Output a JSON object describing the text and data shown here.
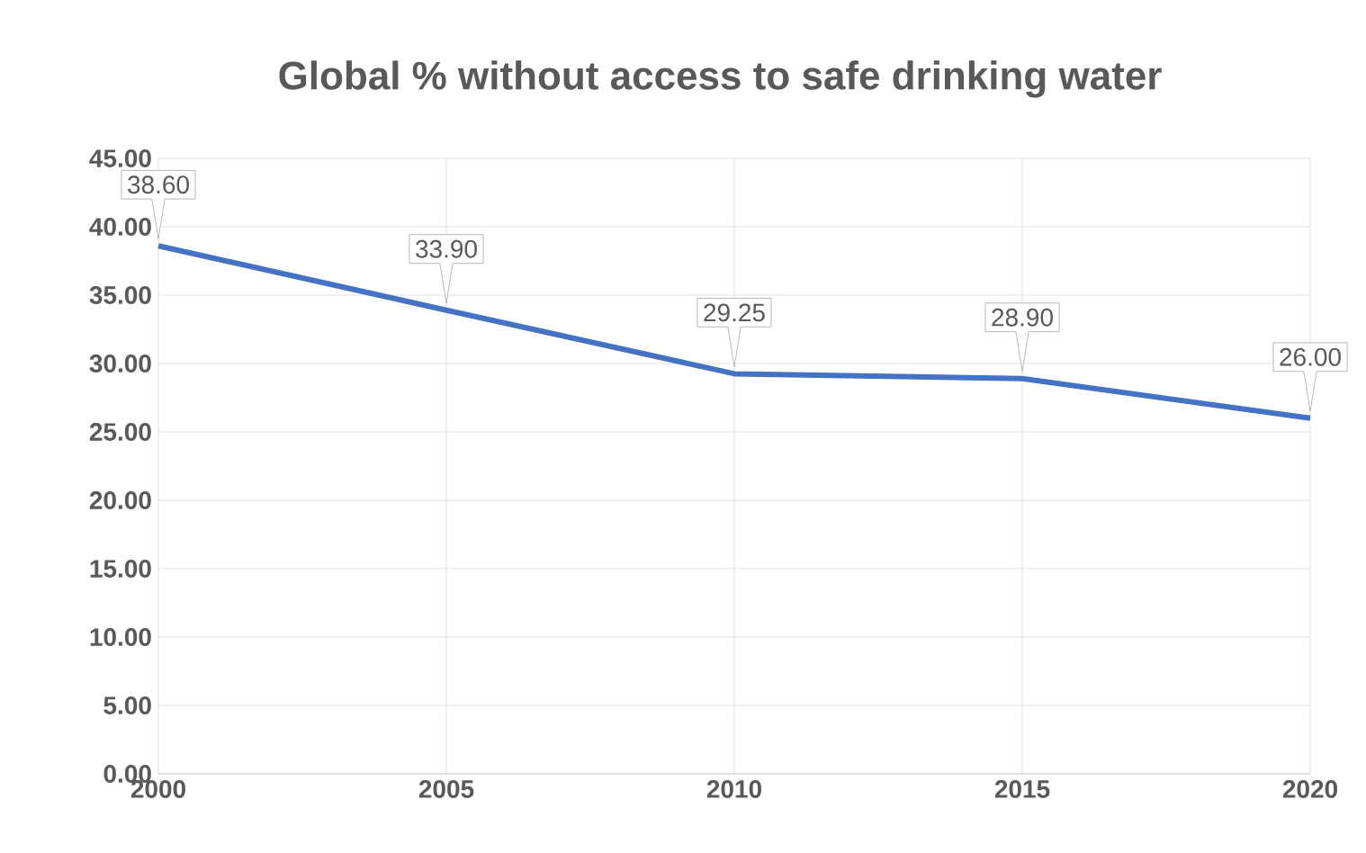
{
  "chart_data": {
    "type": "line",
    "title": "Global % without access to safe drinking water",
    "x": [
      2000,
      2005,
      2010,
      2015,
      2020
    ],
    "values": [
      38.6,
      33.9,
      29.25,
      28.9,
      26.0
    ],
    "value_labels": [
      "38.60",
      "33.90",
      "29.25",
      "28.90",
      "26.00"
    ],
    "color": "#4472c4",
    "xlim": [
      2000,
      2020
    ],
    "xticks": [
      2000,
      2005,
      2010,
      2015,
      2020
    ],
    "ylim": [
      0,
      45
    ],
    "yticks": [
      {
        "value": 0,
        "label": "0.00"
      },
      {
        "value": 5,
        "label": "5.00"
      },
      {
        "value": 10,
        "label": "10.00"
      },
      {
        "value": 15,
        "label": "15.00"
      },
      {
        "value": 20,
        "label": "20.00"
      },
      {
        "value": 25,
        "label": "25.00"
      },
      {
        "value": 30,
        "label": "30.00"
      },
      {
        "value": 35,
        "label": "35.00"
      },
      {
        "value": 40,
        "label": "40.00"
      },
      {
        "value": 45,
        "label": "45.00"
      }
    ],
    "grid": true,
    "marker": "none",
    "line_style": "solid"
  }
}
